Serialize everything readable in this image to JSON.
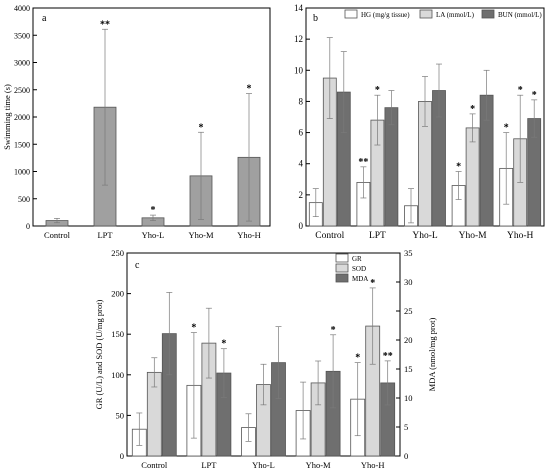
{
  "colors": {
    "dark": "#6f6f6f",
    "light": "#d9d9d9",
    "white": "#ffffff",
    "single": "#a0a0a0",
    "axis": "#000000"
  },
  "chart_data": [
    {
      "panel": "a",
      "type": "bar",
      "ylabel": "Swimming time (s)",
      "categories": [
        "Control",
        "LPT",
        "Yho-L",
        "Yho-M",
        "Yho-H"
      ],
      "yticks": [
        "0",
        "500",
        "1000",
        "1500",
        "2000",
        "2500",
        "3000",
        "3500",
        "4000"
      ],
      "ylim": [
        0,
        4000
      ],
      "series": [
        {
          "values": [
            100,
            2180,
            150,
            920,
            1260
          ],
          "errors": [
            40,
            1430,
            50,
            800,
            1170
          ],
          "annotations": [
            "",
            "**",
            "*",
            "*",
            "*"
          ]
        }
      ]
    },
    {
      "panel": "b",
      "type": "bar",
      "categories": [
        "Control",
        "LPT",
        "Yho-L",
        "Yho-M",
        "Yho-H"
      ],
      "yticks": [
        "0",
        "2",
        "4",
        "6",
        "8",
        "10",
        "12",
        "14"
      ],
      "ylim": [
        0,
        14
      ],
      "legend": "top",
      "series": [
        {
          "name": "HG (mg/g tissue)",
          "values": [
            1.5,
            2.8,
            1.3,
            2.6,
            3.7
          ],
          "errors": [
            0.9,
            1.0,
            1.1,
            0.9,
            2.3
          ],
          "annotations": [
            "",
            "**",
            "",
            "*",
            "*"
          ]
        },
        {
          "name": "LA (mmol/L)",
          "values": [
            9.5,
            6.8,
            8.0,
            6.3,
            5.6
          ],
          "errors": [
            2.6,
            1.6,
            1.6,
            0.9,
            2.8
          ],
          "annotations": [
            "",
            "*",
            "",
            "*",
            "*"
          ]
        },
        {
          "name": "BUN (mmol/L)",
          "values": [
            8.6,
            7.6,
            8.7,
            8.4,
            6.9
          ],
          "errors": [
            2.6,
            1.1,
            1.7,
            1.6,
            1.2
          ],
          "annotations": [
            "",
            "",
            "",
            "",
            "*"
          ]
        }
      ]
    },
    {
      "panel": "c",
      "type": "bar",
      "ylabel": "GR (U/L) and SOD (U/mg prot)",
      "y2label": "MDA (nmol/mg prot)",
      "categories": [
        "Control",
        "LPT",
        "Yho-L",
        "Yho-M",
        "Yho-H"
      ],
      "yticks": [
        "0",
        "50",
        "100",
        "150",
        "200",
        "250"
      ],
      "ylim": [
        0,
        250
      ],
      "y2ticks": [
        "0",
        "5",
        "10",
        "15",
        "20",
        "25",
        "30",
        "35"
      ],
      "y2lim": [
        0,
        35
      ],
      "legend": "top-right",
      "series": [
        {
          "name": "GR",
          "axis": "left",
          "values": [
            33,
            87,
            35,
            56,
            70
          ],
          "errors": [
            20,
            65,
            17,
            35,
            45
          ],
          "annotations": [
            "",
            "*",
            "",
            "",
            "*"
          ]
        },
        {
          "name": "SOD",
          "axis": "left",
          "values": [
            103,
            139,
            88,
            90,
            160
          ],
          "errors": [
            18,
            43,
            25,
            27,
            47
          ],
          "annotations": [
            "",
            "",
            "",
            "",
            "*"
          ]
        },
        {
          "name": "MDA",
          "axis": "right",
          "values": [
            21.1,
            14.3,
            16.1,
            14.6,
            12.6
          ],
          "errors": [
            7.1,
            4.2,
            6.2,
            6.3,
            3.8
          ],
          "annotations": [
            "",
            "*",
            "",
            "*",
            "**"
          ]
        }
      ]
    }
  ]
}
